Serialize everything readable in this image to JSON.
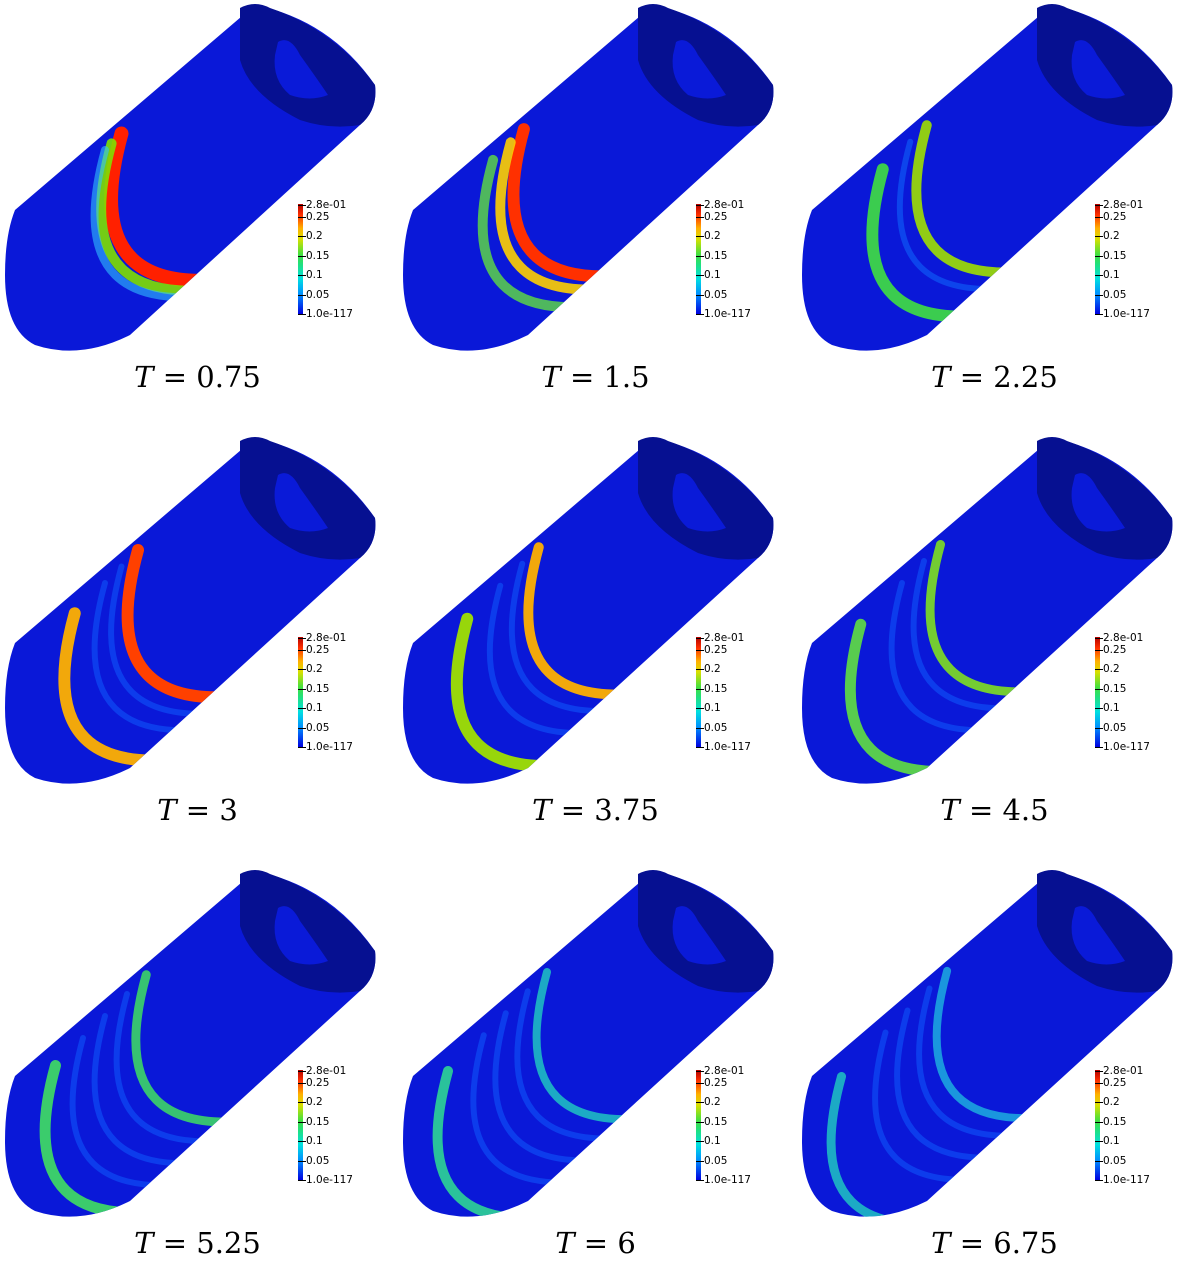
{
  "colorbar": {
    "labels": [
      "2.8e-01",
      "0.25",
      "0.2",
      "0.15",
      "0.1",
      "0.05",
      "1.0e-117"
    ]
  },
  "panels": [
    {
      "variable": "T",
      "value": "0.75"
    },
    {
      "variable": "T",
      "value": "1.5"
    },
    {
      "variable": "T",
      "value": "2.25"
    },
    {
      "variable": "T",
      "value": "3"
    },
    {
      "variable": "T",
      "value": "3.75"
    },
    {
      "variable": "T",
      "value": "4.5"
    },
    {
      "variable": "T",
      "value": "5.25"
    },
    {
      "variable": "T",
      "value": "6"
    },
    {
      "variable": "T",
      "value": "6.75"
    }
  ]
}
